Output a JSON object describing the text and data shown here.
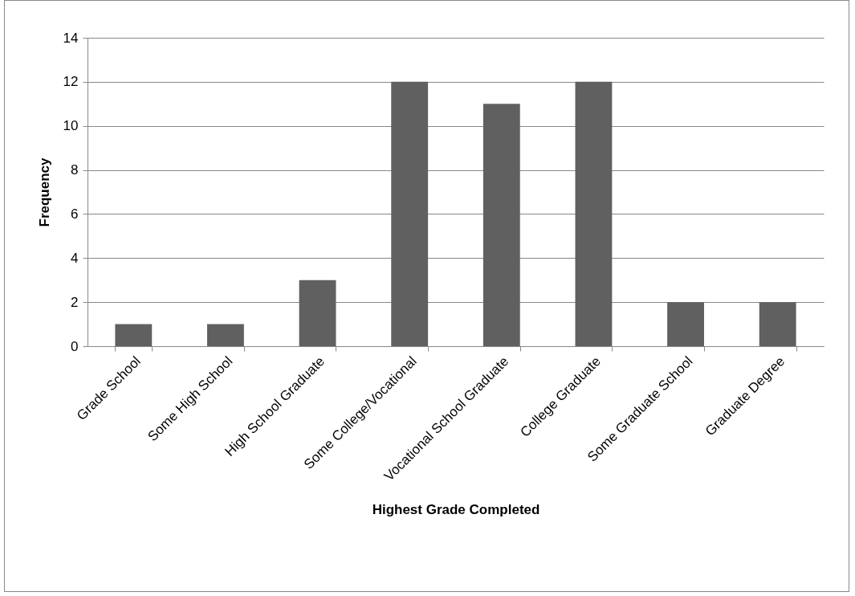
{
  "chart_data": {
    "type": "bar",
    "xlabel": "Highest Grade Completed",
    "ylabel": "Frequency",
    "categories": [
      "Grade School",
      "Some High School",
      "High School Graduate",
      "Some College/Vocational",
      "Vocational School Graduate",
      "College Graduate",
      "Some Graduate School",
      "Graduate Degree"
    ],
    "values": [
      1,
      1,
      3,
      12,
      11,
      12,
      2,
      2
    ],
    "color": "#606060",
    "ylim": [
      0,
      14
    ],
    "yticks": [
      0,
      2,
      4,
      6,
      8,
      10,
      12,
      14
    ],
    "grid": "y"
  }
}
